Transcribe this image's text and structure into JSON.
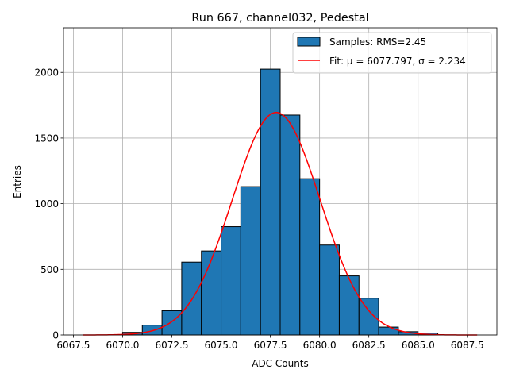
{
  "chart_data": {
    "type": "bar",
    "title": "Run 667, channel032, Pedestal",
    "xlabel": "ADC Counts",
    "ylabel": "Entries",
    "xlim": [
      6067.0,
      6089.0
    ],
    "ylim": [
      0,
      2340
    ],
    "grid": true,
    "legend_position": "top-right",
    "xticks": [
      "6067.5",
      "6070.0",
      "6072.5",
      "6075.0",
      "6077.5",
      "6080.0",
      "6082.5",
      "6085.0",
      "6087.5"
    ],
    "xtick_values": [
      6067.5,
      6070.0,
      6072.5,
      6075.0,
      6077.5,
      6080.0,
      6082.5,
      6085.0,
      6087.5
    ],
    "yticks": [
      "0",
      "500",
      "1000",
      "1500",
      "2000"
    ],
    "ytick_values": [
      0,
      500,
      1000,
      1500,
      2000
    ],
    "series": [
      {
        "name": "Samples: RMS=2.45",
        "kind": "histogram",
        "color": "#1f77b4",
        "edge_color": "#000000",
        "bin_edges": [
          6070,
          6071,
          6072,
          6073,
          6074,
          6075,
          6076,
          6077,
          6078,
          6079,
          6080,
          6081,
          6082,
          6083,
          6084,
          6085,
          6086
        ],
        "values": [
          20,
          75,
          185,
          555,
          640,
          825,
          1130,
          2025,
          1675,
          1190,
          685,
          450,
          280,
          60,
          25,
          15
        ]
      },
      {
        "name": "Fit: μ = 6077.797, σ = 2.234",
        "kind": "line",
        "color": "#ff0000",
        "mu": 6077.797,
        "sigma": 2.234,
        "amplitude": 1695,
        "x_range": [
          6068,
          6088
        ]
      }
    ]
  }
}
